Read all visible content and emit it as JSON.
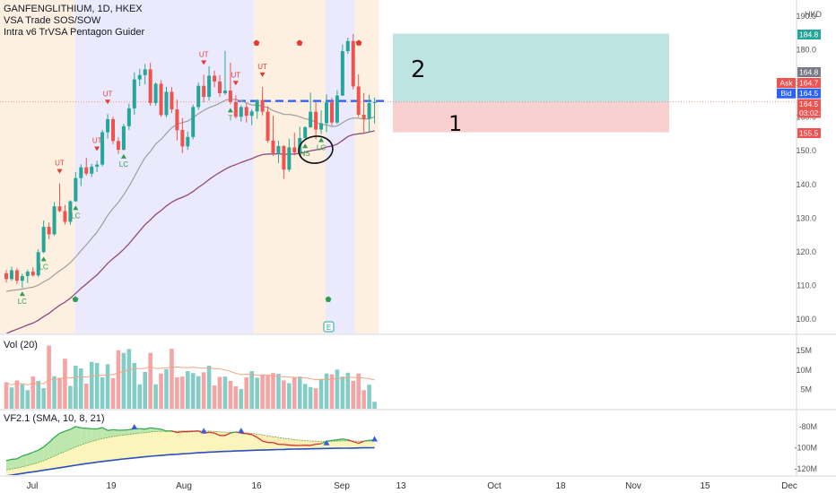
{
  "chart": {
    "symbol_line": "GANFENGLITHIUM, 1D, HKEX",
    "indicator_1": "VSA Trade SOS/SOW",
    "indicator_2": "Intra v6 TrVSA Pentagon Guider",
    "currency": "HKD",
    "volume_pane_label": "Vol (20)",
    "vf_pane_label": "VF2.1 (SMA, 10, 8, 21)",
    "colors": {
      "up": "#26a69a",
      "down": "#ef5350",
      "up_vol": "#83cdc6",
      "down_vol": "#f5a3a3",
      "ma_grey": "#9e9e9e",
      "ma_purple": "#8e4a7f",
      "bg_orange": "#fdf0e0",
      "bg_purple": "#ebeafc",
      "zone_green": "#b2dfdb",
      "zone_red": "#f8c8c8"
    },
    "hand_annotations": [
      "2",
      "1"
    ],
    "price_tags": [
      {
        "label": "",
        "value": "184.8",
        "color": "#26a69a"
      },
      {
        "label": "",
        "value": "164.8",
        "color": "#787b86"
      },
      {
        "label": "Ask",
        "value": "164.7",
        "color": "#ef5350"
      },
      {
        "label": "Bid",
        "value": "164.5",
        "color": "#2962ff"
      },
      {
        "label": "",
        "value": "164.5",
        "value2": "03:02:43",
        "color": "#ef5350"
      },
      {
        "label": "",
        "value": "155.5",
        "color": "#ef5350"
      }
    ],
    "volume_axis": [
      "15M",
      "10M",
      "5M"
    ],
    "vf_axis": [
      "-80M",
      "-100M",
      "-120M"
    ],
    "event_marker": "E",
    "signals": [
      {
        "i": 3,
        "text": "LC",
        "pos": "below",
        "arrow": "up"
      },
      {
        "i": 7,
        "text": "LC",
        "pos": "below",
        "arrow": "up"
      },
      {
        "i": 10,
        "text": "UT",
        "pos": "above",
        "arrow": "down"
      },
      {
        "i": 13,
        "text": "LC",
        "pos": "below",
        "arrow": "up"
      },
      {
        "i": 17,
        "text": "UT",
        "pos": "above",
        "arrow": "down"
      },
      {
        "i": 19,
        "text": "UT",
        "pos": "above",
        "arrow": "down"
      },
      {
        "i": 22,
        "text": "LC",
        "pos": "below",
        "arrow": "up"
      },
      {
        "i": 37,
        "text": "UT",
        "pos": "above",
        "arrow": "down"
      },
      {
        "i": 43,
        "text": "UT",
        "pos": "above",
        "arrow": "down"
      },
      {
        "i": 42,
        "text": "T",
        "pos": "below",
        "arrow": "up"
      },
      {
        "i": 48,
        "text": "UT",
        "pos": "above",
        "arrow": "down"
      },
      {
        "i": 56,
        "text": "NS",
        "pos": "below",
        "arrow": "up"
      },
      {
        "i": 59,
        "text": "LC",
        "pos": "below",
        "arrow": "up"
      }
    ]
  },
  "chart_data": {
    "type": "candlestick",
    "price_axis": {
      "labels": [
        190,
        180,
        170,
        160,
        150,
        140,
        130,
        120,
        110,
        100
      ],
      "ylim": [
        96,
        193
      ]
    },
    "time_axis": [
      "Jul",
      "19",
      "Aug",
      "16",
      "Sep",
      "13",
      "Oct",
      "18",
      "Nov",
      "15",
      "Dec"
    ],
    "ohlc": [
      [
        113.6,
        114.6,
        110.9,
        111.9
      ],
      [
        111.9,
        115.6,
        111.4,
        114.5
      ],
      [
        114.5,
        115.1,
        110.4,
        111.4
      ],
      [
        111.4,
        113.5,
        109.3,
        112.8
      ],
      [
        112.8,
        114.7,
        110.7,
        114.1
      ],
      [
        114.1,
        115.4,
        112.6,
        113.0
      ],
      [
        113.0,
        120.8,
        112.5,
        119.9
      ],
      [
        119.9,
        129.3,
        119.6,
        127.4
      ],
      [
        127.4,
        128.7,
        123.8,
        125.2
      ],
      [
        125.2,
        134.8,
        124.8,
        133.5
      ],
      [
        133.5,
        140.3,
        131.8,
        132.1
      ],
      [
        132.1,
        133.9,
        128.1,
        128.9
      ],
      [
        128.9,
        135.3,
        128.0,
        135.0
      ],
      [
        135.0,
        143.7,
        134.8,
        141.9
      ],
      [
        141.9,
        146.0,
        139.5,
        145.1
      ],
      [
        145.1,
        147.9,
        142.6,
        143.2
      ],
      [
        143.2,
        146.1,
        142.2,
        145.3
      ],
      [
        145.3,
        147.0,
        143.7,
        145.9
      ],
      [
        145.9,
        156.2,
        145.4,
        155.5
      ],
      [
        155.5,
        160.9,
        153.6,
        159.4
      ],
      [
        159.4,
        160.1,
        152.0,
        152.9
      ],
      [
        152.9,
        154.0,
        149.1,
        150.3
      ],
      [
        150.3,
        158.0,
        150.1,
        157.3
      ],
      [
        157.3,
        164.0,
        156.2,
        162.6
      ],
      [
        162.6,
        173.3,
        160.7,
        171.2
      ],
      [
        171.2,
        174.3,
        169.2,
        172.5
      ],
      [
        172.5,
        175.8,
        169.7,
        174.2
      ],
      [
        174.2,
        176.1,
        163.4,
        164.2
      ],
      [
        164.2,
        170.3,
        163.4,
        169.9
      ],
      [
        169.9,
        171.0,
        160.1,
        160.6
      ],
      [
        160.6,
        169.0,
        159.9,
        167.5
      ],
      [
        167.5,
        168.9,
        161.2,
        162.3
      ],
      [
        162.3,
        165.2,
        153.1,
        156.1
      ],
      [
        156.2,
        159.7,
        149.3,
        151.3
      ],
      [
        151.3,
        155.7,
        150.3,
        154.1
      ],
      [
        154.1,
        163.7,
        153.4,
        163.0
      ],
      [
        163.0,
        170.3,
        162.2,
        169.3
      ],
      [
        169.3,
        172.6,
        164.4,
        166.0
      ],
      [
        166.0,
        175.1,
        164.9,
        172.3
      ],
      [
        172.3,
        173.8,
        168.9,
        170.6
      ],
      [
        170.6,
        172.5,
        166.1,
        167.1
      ],
      [
        167.1,
        179.7,
        166.6,
        167.9
      ],
      [
        167.9,
        176.2,
        163.8,
        164.5
      ],
      [
        164.5,
        166.5,
        159.6,
        160.1
      ],
      [
        160.1,
        163.5,
        158.7,
        163.0
      ],
      [
        163.0,
        164.1,
        158.4,
        160.4
      ],
      [
        160.4,
        162.3,
        157.6,
        161.7
      ],
      [
        161.7,
        165.3,
        159.5,
        165.1
      ],
      [
        165.1,
        169.0,
        160.5,
        161.6
      ],
      [
        161.6,
        163.2,
        152.4,
        153.0
      ],
      [
        153.0,
        160.4,
        148.5,
        149.3
      ],
      [
        149.3,
        153.0,
        146.3,
        151.4
      ],
      [
        151.4,
        151.7,
        141.7,
        144.4
      ],
      [
        144.4,
        153.6,
        143.8,
        151.0
      ],
      [
        151.0,
        155.4,
        148.6,
        149.5
      ],
      [
        149.5,
        157.1,
        149.2,
        153.8
      ],
      [
        153.8,
        157.3,
        153.2,
        157.0
      ],
      [
        157.0,
        167.3,
        156.8,
        161.6
      ],
      [
        161.6,
        164.4,
        153.4,
        156.3
      ],
      [
        156.3,
        162.0,
        155.0,
        158.2
      ],
      [
        158.2,
        166.8,
        155.6,
        164.4
      ],
      [
        164.4,
        165.8,
        157.5,
        158.4
      ],
      [
        158.4,
        168.0,
        157.9,
        166.4
      ],
      [
        166.4,
        181.6,
        166.3,
        179.6
      ],
      [
        179.6,
        183.6,
        178.8,
        182.6
      ],
      [
        182.6,
        184.7,
        168.2,
        169.1
      ],
      [
        169.1,
        172.7,
        160.0,
        160.7
      ],
      [
        160.7,
        167.2,
        155.0,
        159.5
      ],
      [
        159.5,
        166.7,
        155.5,
        164.2
      ],
      [
        164.2,
        165.8,
        158.1,
        164.5
      ]
    ],
    "volume": [
      6.8,
      5.5,
      7.3,
      6.3,
      4.8,
      8.3,
      7.2,
      5.3,
      16.3,
      8.4,
      8.0,
      12.9,
      5.9,
      11.1,
      10.4,
      6.5,
      12.1,
      11.8,
      8.1,
      11.5,
      7.9,
      15.1,
      14.4,
      15.4,
      11.8,
      6.3,
      9.5,
      14.4,
      6.3,
      9.1,
      10.2,
      15.5,
      8.1,
      8.3,
      9.7,
      9.2,
      8.4,
      9.4,
      11.1,
      6.0,
      8.2,
      8.3,
      7.2,
      5.8,
      5.1,
      8.1,
      9.7,
      8.0,
      8.8,
      8.6,
      9.2,
      9.0,
      7.3,
      6.6,
      8.1,
      8.3,
      6.4,
      5.6,
      5.3,
      7.7,
      9.1,
      8.9,
      10.1,
      8.3,
      9.3,
      7.2,
      9.1,
      4.8,
      6.2,
      1.8
    ],
    "vf_main": [
      -112.2,
      -111.0,
      -110.6,
      -107.8,
      -106.3,
      -104.3,
      -102.4,
      -99.2,
      -95.1,
      -90.2,
      -86.3,
      -84.3,
      -82.6,
      -79.9,
      -81.2,
      -81.6,
      -82.0,
      -82.1,
      -80.9,
      -83.6,
      -82.9,
      -83.4,
      -83.3,
      -82.9,
      -82.1,
      -81.8,
      -82.4,
      -81.1,
      -81.8,
      -82.4,
      -84.2,
      -84.0,
      -85.5,
      -84.8,
      -84.8,
      -84.5,
      -84.1,
      -86.3,
      -85.3,
      -86.1,
      -88.4,
      -88.4,
      -86.0,
      -85.0,
      -86.1,
      -86.7,
      -87.5,
      -90.1,
      -93.6,
      -95.0,
      -95.2,
      -96.8,
      -96.9,
      -97.5,
      -97.8,
      -97.9,
      -97.6,
      -97.8,
      -96.7,
      -96.2,
      -94.0,
      -93.1,
      -92.5,
      -91.7,
      -92.5,
      -94.2,
      -95.8,
      -93.8,
      -92.9,
      -92.9
    ],
    "vf_signal": [
      -121.0,
      -120.2,
      -119.3,
      -118.2,
      -116.9,
      -115.5,
      -114.1,
      -112.3,
      -110.2,
      -107.9,
      -105.5,
      -103.5,
      -101.4,
      -99.2,
      -97.4,
      -95.6,
      -94.0,
      -92.6,
      -91.2,
      -90.4,
      -89.4,
      -88.6,
      -88.0,
      -87.4,
      -86.7,
      -86.1,
      -85.7,
      -85.0,
      -84.6,
      -84.4,
      -84.5,
      -84.3,
      -84.3,
      -84.1,
      -84.0,
      -84.0,
      -84.0,
      -84.1,
      -84.2,
      -84.5,
      -84.9,
      -85.2,
      -85.3,
      -85.3,
      -85.5,
      -85.8,
      -86.3,
      -87.0,
      -87.9,
      -88.8,
      -89.5,
      -90.3,
      -91.0,
      -91.7,
      -92.3,
      -92.8,
      -93.2,
      -93.6,
      -93.8,
      -94.1,
      -94.0,
      -93.8,
      -93.7,
      -93.5,
      -93.5,
      -93.6,
      -93.8,
      -93.7,
      -93.7,
      -93.7
    ],
    "vf_base": [
      -126.8,
      -126.0,
      -125.2,
      -124.4,
      -123.6,
      -122.9,
      -122.2,
      -121.4,
      -120.6,
      -119.8,
      -119.0,
      -118.2,
      -117.4,
      -116.6,
      -115.8,
      -115.1,
      -114.4,
      -113.7,
      -113.0,
      -112.4,
      -111.8,
      -111.2,
      -110.6,
      -110.1,
      -109.6,
      -109.1,
      -108.6,
      -108.1,
      -107.7,
      -107.3,
      -106.9,
      -106.5,
      -106.2,
      -105.8,
      -105.5,
      -105.2,
      -104.8,
      -104.5,
      -104.2,
      -104.0,
      -103.7,
      -103.5,
      -103.3,
      -103.1,
      -102.9,
      -102.7,
      -102.5,
      -102.3,
      -102.2,
      -102.0,
      -101.9,
      -101.7,
      -101.6,
      -101.4,
      -101.3,
      -101.2,
      -101.1,
      -101.0,
      -100.9,
      -100.8,
      -100.7,
      -100.6,
      -100.5,
      -100.4,
      -100.4,
      -100.3,
      -100.2,
      -100.1,
      -100.1,
      -100.0
    ],
    "volume_ylim": [
      0,
      18.5
    ],
    "vf_ylim": [
      -122,
      -74
    ],
    "long_position": {
      "entry": 164.5,
      "target": 184.8,
      "stop": 155.5
    },
    "grid": false
  }
}
